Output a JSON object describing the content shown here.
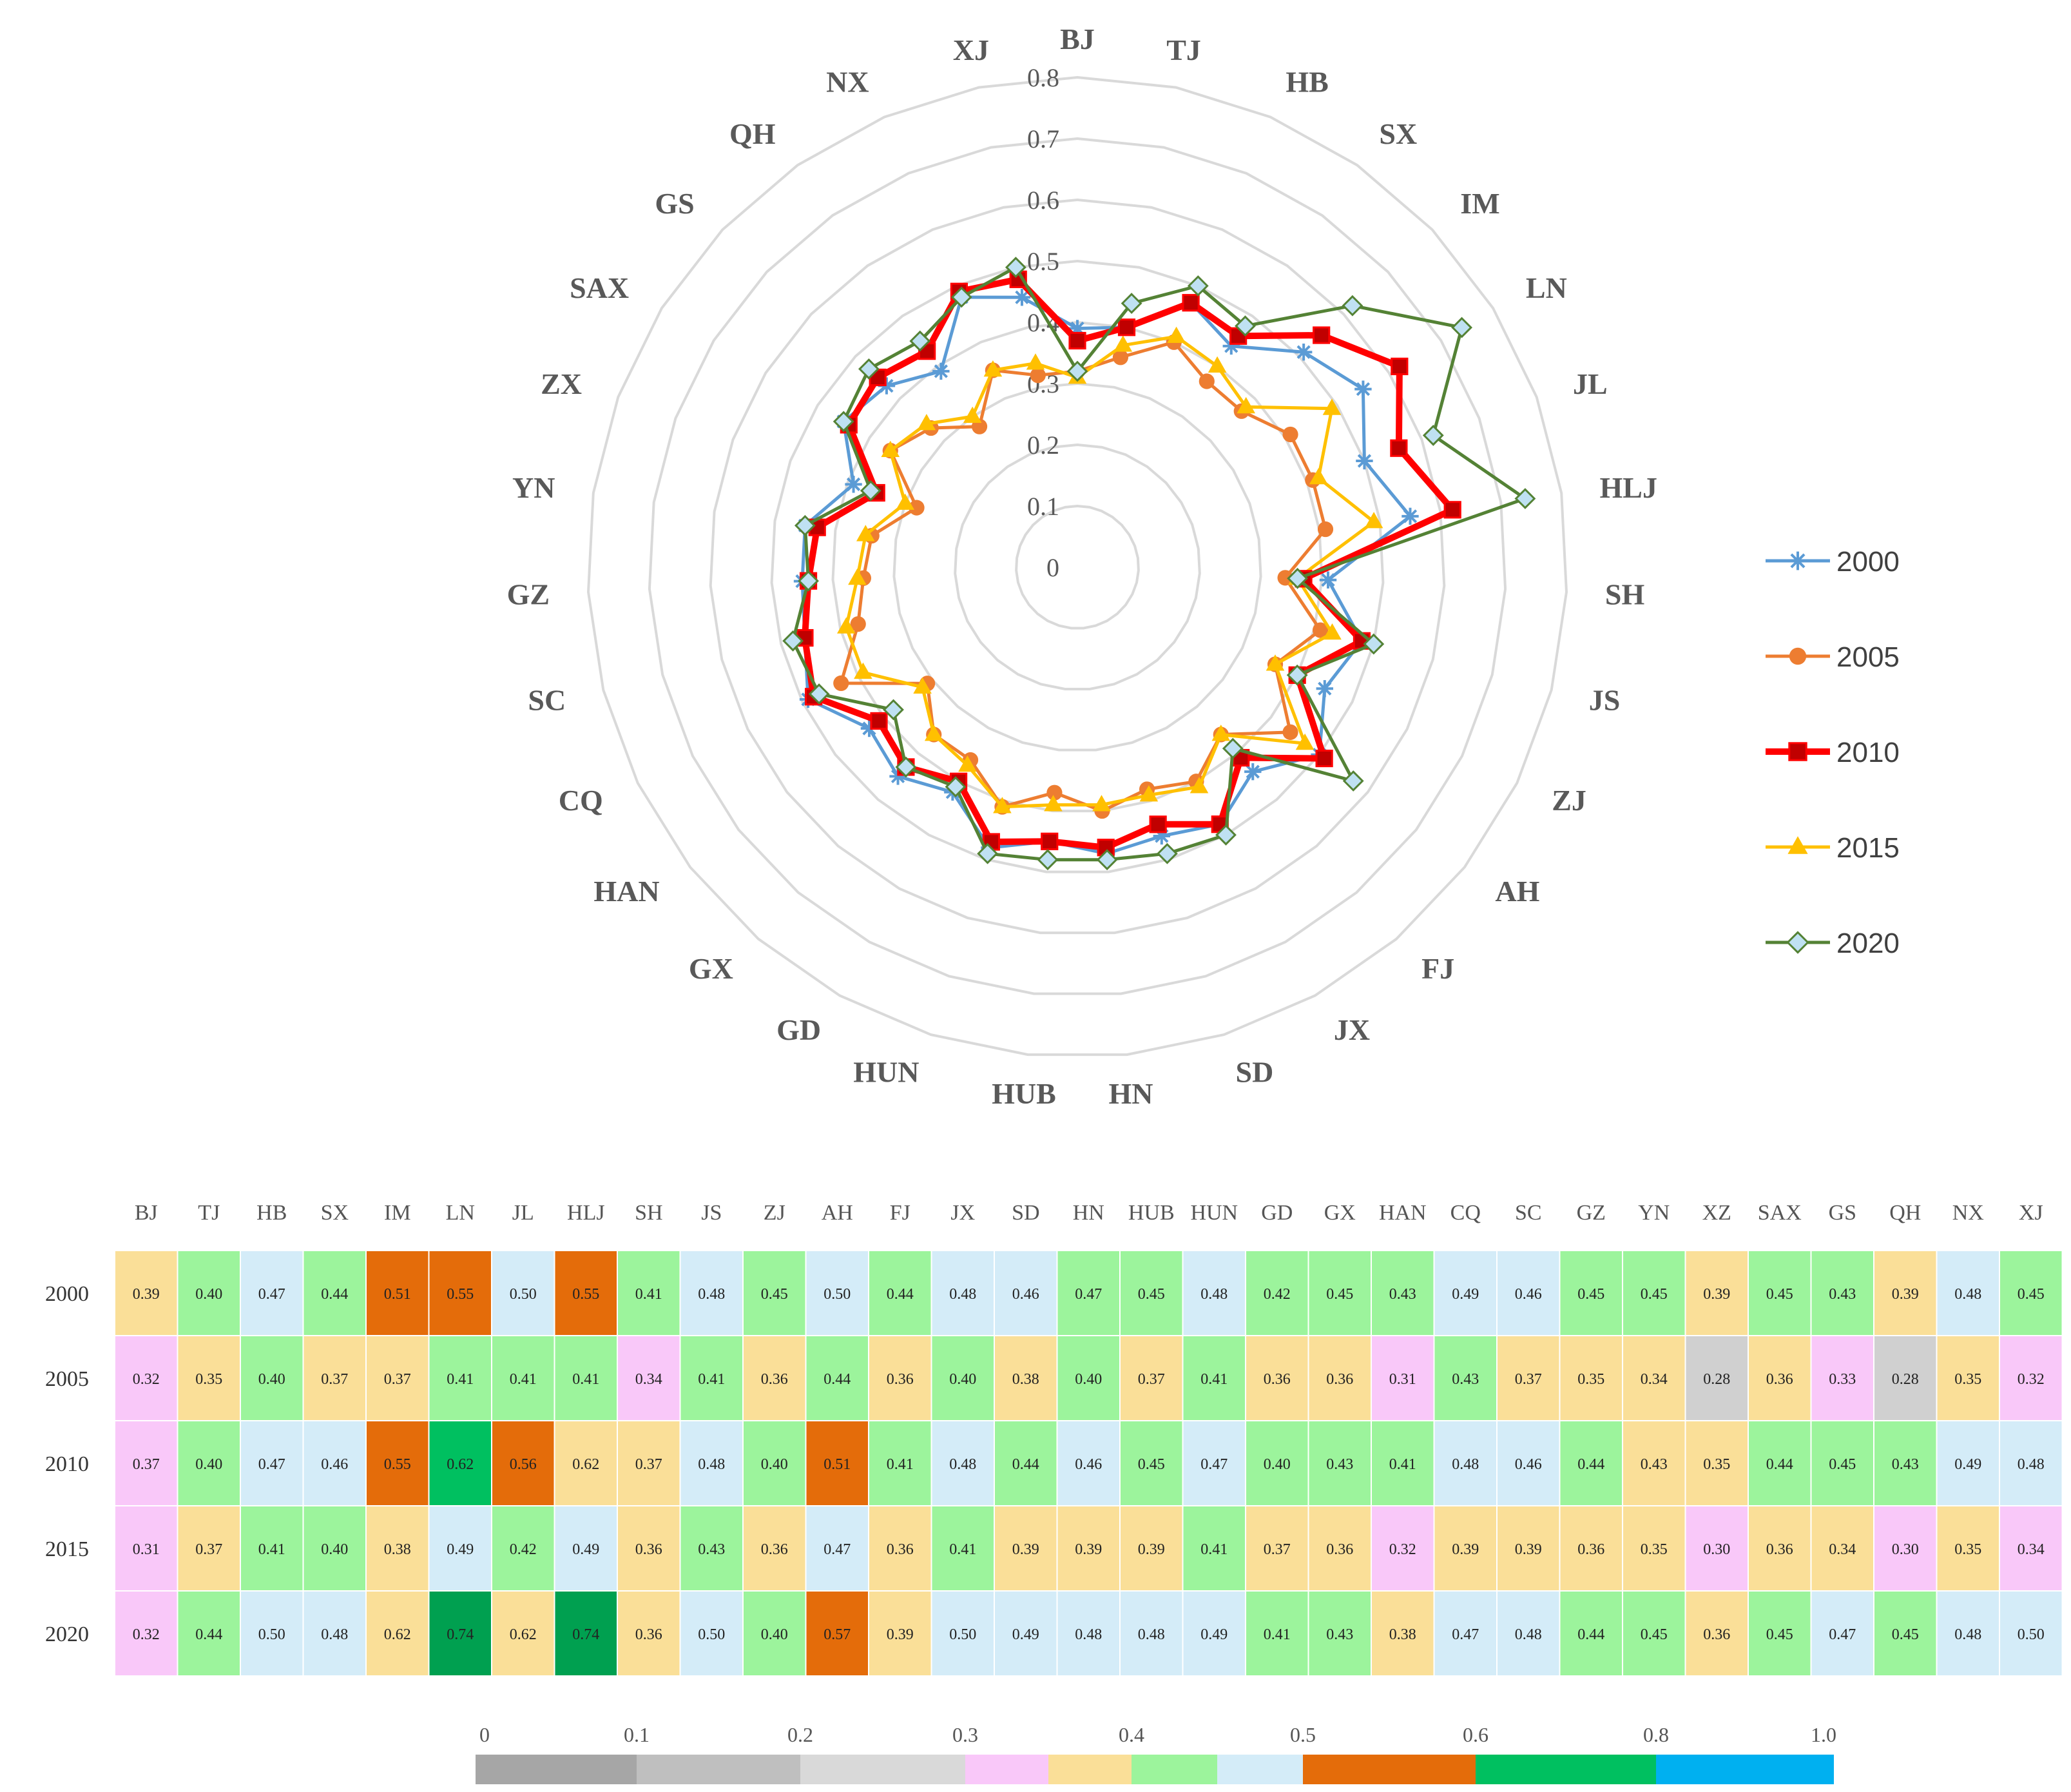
{
  "chart_data": [
    {
      "type": "radar",
      "title": "",
      "categories": [
        "BJ",
        "TJ",
        "HB",
        "SX",
        "IM",
        "LN",
        "JL",
        "HLJ",
        "SH",
        "JS",
        "ZJ",
        "AH",
        "FJ",
        "JX",
        "SD",
        "HN",
        "HUB",
        "HUN",
        "GD",
        "GX",
        "HAN",
        "CQ",
        "SC",
        "GZ",
        "YN",
        "ZX",
        "SAX",
        "GS",
        "QH",
        "NX",
        "XJ"
      ],
      "radial_ticks": [
        "0",
        "0.1",
        "0.2",
        "0.3",
        "0.4",
        "0.5",
        "0.6",
        "0.7",
        "0.8"
      ],
      "rlim": [
        0,
        0.8
      ],
      "legend_position": "right",
      "series": [
        {
          "name": "2000",
          "color": "#5b9bd5",
          "marker": "star",
          "values": [
            0.39,
            0.4,
            0.47,
            0.44,
            0.51,
            0.55,
            0.5,
            0.55,
            0.41,
            0.48,
            0.45,
            0.5,
            0.44,
            0.48,
            0.46,
            0.47,
            0.45,
            0.48,
            0.42,
            0.45,
            0.43,
            0.49,
            0.46,
            0.45,
            0.45,
            0.39,
            0.45,
            0.43,
            0.39,
            0.48,
            0.45
          ]
        },
        {
          "name": "2005",
          "color": "#ed7d31",
          "marker": "circle",
          "values": [
            0.32,
            0.35,
            0.4,
            0.37,
            0.37,
            0.41,
            0.41,
            0.41,
            0.34,
            0.41,
            0.36,
            0.44,
            0.36,
            0.4,
            0.38,
            0.4,
            0.37,
            0.41,
            0.36,
            0.36,
            0.31,
            0.43,
            0.37,
            0.35,
            0.34,
            0.28,
            0.36,
            0.33,
            0.28,
            0.35,
            0.32
          ]
        },
        {
          "name": "2010",
          "color": "#ff0000",
          "marker": "square",
          "values": [
            0.37,
            0.4,
            0.47,
            0.46,
            0.55,
            0.62,
            0.56,
            0.62,
            0.37,
            0.48,
            0.4,
            0.51,
            0.41,
            0.48,
            0.44,
            0.46,
            0.45,
            0.47,
            0.4,
            0.43,
            0.41,
            0.48,
            0.46,
            0.44,
            0.43,
            0.35,
            0.44,
            0.45,
            0.43,
            0.49,
            0.48
          ]
        },
        {
          "name": "2015",
          "color": "#ffc000",
          "marker": "triangle",
          "values": [
            0.31,
            0.37,
            0.41,
            0.4,
            0.38,
            0.49,
            0.42,
            0.49,
            0.36,
            0.43,
            0.36,
            0.47,
            0.36,
            0.41,
            0.39,
            0.39,
            0.39,
            0.41,
            0.37,
            0.36,
            0.32,
            0.39,
            0.39,
            0.36,
            0.35,
            0.3,
            0.36,
            0.34,
            0.3,
            0.35,
            0.34
          ]
        },
        {
          "name": "2020",
          "color": "#548235",
          "marker": "diamond",
          "values": [
            0.32,
            0.44,
            0.5,
            0.48,
            0.62,
            0.74,
            0.62,
            0.74,
            0.36,
            0.5,
            0.4,
            0.57,
            0.39,
            0.5,
            0.49,
            0.48,
            0.48,
            0.49,
            0.41,
            0.43,
            0.38,
            0.47,
            0.48,
            0.44,
            0.45,
            0.36,
            0.45,
            0.47,
            0.45,
            0.48,
            0.5
          ]
        }
      ]
    },
    {
      "type": "heatmap",
      "title": "",
      "columns": [
        "BJ",
        "TJ",
        "HB",
        "SX",
        "IM",
        "LN",
        "JL",
        "HLJ",
        "SH",
        "JS",
        "ZJ",
        "AH",
        "FJ",
        "JX",
        "SD",
        "HN",
        "HUB",
        "HUN",
        "GD",
        "GX",
        "HAN",
        "CQ",
        "SC",
        "GZ",
        "YN",
        "XZ",
        "SAX",
        "GS",
        "QH",
        "NX",
        "XJ"
      ],
      "rows": [
        "2000",
        "2005",
        "2010",
        "2015",
        "2020"
      ],
      "values": [
        [
          "0.39",
          "0.40",
          "0.47",
          "0.44",
          "0.51",
          "0.55",
          "0.50",
          "0.55",
          "0.41",
          "0.48",
          "0.45",
          "0.50",
          "0.44",
          "0.48",
          "0.46",
          "0.47",
          "0.45",
          "0.48",
          "0.42",
          "0.45",
          "0.43",
          "0.49",
          "0.46",
          "0.45",
          "0.45",
          "0.39",
          "0.45",
          "0.43",
          "0.39",
          "0.48",
          "0.45"
        ],
        [
          "0.32",
          "0.35",
          "0.40",
          "0.37",
          "0.37",
          "0.41",
          "0.41",
          "0.41",
          "0.34",
          "0.41",
          "0.36",
          "0.44",
          "0.36",
          "0.40",
          "0.38",
          "0.40",
          "0.37",
          "0.41",
          "0.36",
          "0.36",
          "0.31",
          "0.43",
          "0.37",
          "0.35",
          "0.34",
          "0.28",
          "0.36",
          "0.33",
          "0.28",
          "0.35",
          "0.32"
        ],
        [
          "0.37",
          "0.40",
          "0.47",
          "0.46",
          "0.55",
          "0.62",
          "0.56",
          "0.62",
          "0.37",
          "0.48",
          "0.40",
          "0.51",
          "0.41",
          "0.48",
          "0.44",
          "0.46",
          "0.45",
          "0.47",
          "0.40",
          "0.43",
          "0.41",
          "0.48",
          "0.46",
          "0.44",
          "0.43",
          "0.35",
          "0.44",
          "0.45",
          "0.43",
          "0.49",
          "0.48"
        ],
        [
          "0.31",
          "0.37",
          "0.41",
          "0.40",
          "0.38",
          "0.49",
          "0.42",
          "0.49",
          "0.36",
          "0.43",
          "0.36",
          "0.47",
          "0.36",
          "0.41",
          "0.39",
          "0.39",
          "0.39",
          "0.41",
          "0.37",
          "0.36",
          "0.32",
          "0.39",
          "0.39",
          "0.36",
          "0.35",
          "0.30",
          "0.36",
          "0.34",
          "0.30",
          "0.35",
          "0.34"
        ],
        [
          "0.32",
          "0.44",
          "0.50",
          "0.48",
          "0.62",
          "0.74",
          "0.62",
          "0.74",
          "0.36",
          "0.50",
          "0.40",
          "0.57",
          "0.39",
          "0.50",
          "0.49",
          "0.48",
          "0.48",
          "0.49",
          "0.41",
          "0.43",
          "0.38",
          "0.47",
          "0.48",
          "0.44",
          "0.45",
          "0.36",
          "0.45",
          "0.47",
          "0.45",
          "0.48",
          "0.50"
        ]
      ],
      "cell_colors": [
        [
          "#fadf98",
          "#9cf49c",
          "#d4ecf8",
          "#9cf49c",
          "#e46c0a",
          "#e46c0a",
          "#d4ecf8",
          "#e46c0a",
          "#9cf49c",
          "#d4ecf8",
          "#9cf49c",
          "#d4ecf8",
          "#9cf49c",
          "#d4ecf8",
          "#d4ecf8",
          "#9cf49c",
          "#9cf49c",
          "#d4ecf8",
          "#9cf49c",
          "#9cf49c",
          "#9cf49c",
          "#d4ecf8",
          "#d4ecf8",
          "#9cf49c",
          "#9cf49c",
          "#fadf98",
          "#9cf49c",
          "#9cf49c",
          "#fadf98",
          "#d4ecf8",
          "#9cf49c"
        ],
        [
          "#f9c8f9",
          "#fadf98",
          "#9cf49c",
          "#fadf98",
          "#fadf98",
          "#9cf49c",
          "#9cf49c",
          "#9cf49c",
          "#f9c8f9",
          "#9cf49c",
          "#fadf98",
          "#9cf49c",
          "#fadf98",
          "#9cf49c",
          "#fadf98",
          "#9cf49c",
          "#fadf98",
          "#9cf49c",
          "#fadf98",
          "#fadf98",
          "#f9c8f9",
          "#9cf49c",
          "#fadf98",
          "#fadf98",
          "#fadf98",
          "#d0d0d0",
          "#fadf98",
          "#f9c8f9",
          "#d0d0d0",
          "#fadf98",
          "#f9c8f9"
        ],
        [
          "#f9c8f9",
          "#9cf49c",
          "#d4ecf8",
          "#d4ecf8",
          "#e46c0a",
          "#00c060",
          "#e46c0a",
          "#fadf98",
          "#fadf98",
          "#d4ecf8",
          "#9cf49c",
          "#e46c0a",
          "#9cf49c",
          "#d4ecf8",
          "#9cf49c",
          "#d4ecf8",
          "#9cf49c",
          "#d4ecf8",
          "#9cf49c",
          "#9cf49c",
          "#9cf49c",
          "#d4ecf8",
          "#d4ecf8",
          "#9cf49c",
          "#fadf98",
          "#fadf98",
          "#9cf49c",
          "#9cf49c",
          "#9cf49c",
          "#d4ecf8",
          "#d4ecf8"
        ],
        [
          "#f9c8f9",
          "#fadf98",
          "#9cf49c",
          "#9cf49c",
          "#fadf98",
          "#d4ecf8",
          "#9cf49c",
          "#d4ecf8",
          "#fadf98",
          "#9cf49c",
          "#fadf98",
          "#d4ecf8",
          "#fadf98",
          "#9cf49c",
          "#fadf98",
          "#fadf98",
          "#fadf98",
          "#9cf49c",
          "#fadf98",
          "#fadf98",
          "#f9c8f9",
          "#fadf98",
          "#fadf98",
          "#fadf98",
          "#fadf98",
          "#f9c8f9",
          "#fadf98",
          "#fadf98",
          "#f9c8f9",
          "#fadf98",
          "#f9c8f9"
        ],
        [
          "#f9c8f9",
          "#9cf49c",
          "#d4ecf8",
          "#d4ecf8",
          "#fadf98",
          "#00a050",
          "#fadf98",
          "#00a050",
          "#fadf98",
          "#d4ecf8",
          "#9cf49c",
          "#e46c0a",
          "#fadf98",
          "#d4ecf8",
          "#d4ecf8",
          "#d4ecf8",
          "#d4ecf8",
          "#d4ecf8",
          "#9cf49c",
          "#9cf49c",
          "#fadf98",
          "#d4ecf8",
          "#d4ecf8",
          "#9cf49c",
          "#9cf49c",
          "#fadf98",
          "#9cf49c",
          "#d4ecf8",
          "#9cf49c",
          "#d4ecf8",
          "#d4ecf8"
        ]
      ],
      "scale": {
        "labels": [
          "0",
          "0.1",
          "0.2",
          "0.3",
          "0.4",
          "0.5",
          "0.6",
          "0.8",
          "1.0"
        ],
        "segments": [
          {
            "color": "#a6a6a6",
            "from": 0.0,
            "to": 0.1
          },
          {
            "color": "#bfbfbf",
            "from": 0.1,
            "to": 0.2
          },
          {
            "color": "#d9d9d9",
            "from": 0.2,
            "to": 0.3
          },
          {
            "color": "#f9c8f9",
            "from": 0.3,
            "to": 0.35
          },
          {
            "color": "#fadf98",
            "from": 0.35,
            "to": 0.4
          },
          {
            "color": "#9cf49c",
            "from": 0.4,
            "to": 0.45
          },
          {
            "color": "#d4ecf8",
            "from": 0.45,
            "to": 0.5
          },
          {
            "color": "#e46c0a",
            "from": 0.5,
            "to": 0.6
          },
          {
            "color": "#00c060",
            "from": 0.6,
            "to": 0.8
          },
          {
            "color": "#00b0f0",
            "from": 0.8,
            "to": 1.0
          }
        ]
      }
    }
  ]
}
